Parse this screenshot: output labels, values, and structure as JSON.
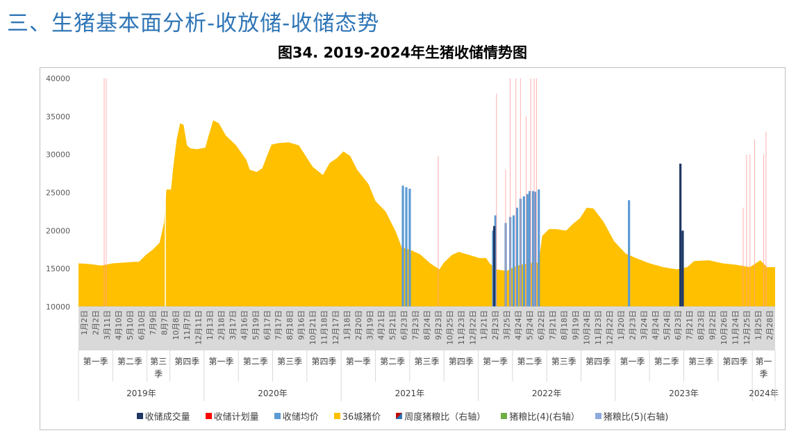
{
  "heading": "三、生猪基本面分析-收放储-收储态势",
  "chart_data": {
    "type": "area+bar",
    "title": "图34. 2019-2024年生猪收储情势图",
    "ylim": [
      10000,
      40000
    ],
    "yticks": [
      "10000",
      "15000",
      "20000",
      "25000",
      "30000",
      "35000",
      "40000"
    ],
    "categories": [
      "1月2日",
      "2月2日",
      "3月11日",
      "4月10日",
      "5月10日",
      "6月10日",
      "7月9日",
      "8月7日",
      "10月8日",
      "11月7日",
      "12月11日",
      "1月13日",
      "2月18日",
      "3月17日",
      "4月16日",
      "5月19日",
      "6月17日",
      "7月17日",
      "8月18日",
      "9月16日",
      "10月21日",
      "11月18日",
      "12月17日",
      "1月18日",
      "2月20日",
      "3月19日",
      "4月21日",
      "5月21日",
      "6月23日",
      "7月23日",
      "8月24日",
      "9月23日",
      "10月25日",
      "11月23日",
      "12月22日",
      "1月21日",
      "2月23日",
      "3月25日",
      "4月24日",
      "5月24日",
      "6月22日",
      "7月21日",
      "8月18日",
      "9月19日",
      "10月24日",
      "11月23日",
      "12月22日",
      "1月20日",
      "2月23日",
      "3月24日",
      "4月24日",
      "5月24日",
      "6月23日",
      "7月21日",
      "8月23日",
      "9月22日",
      "10月26日",
      "11月24日",
      "12月25日",
      "1月25日",
      "2月28日"
    ],
    "quarters": [
      {
        "label": "第一季",
        "ticks": 3
      },
      {
        "label": "第二季",
        "ticks": 3
      },
      {
        "label": "第三季",
        "ticks": 2
      },
      {
        "label": "第四季",
        "ticks": 3
      },
      {
        "label": "第一季",
        "ticks": 3
      },
      {
        "label": "第二季",
        "ticks": 3
      },
      {
        "label": "第三季",
        "ticks": 3
      },
      {
        "label": "第四季",
        "ticks": 3
      },
      {
        "label": "第一季",
        "ticks": 3
      },
      {
        "label": "第二季",
        "ticks": 3
      },
      {
        "label": "第三季",
        "ticks": 3
      },
      {
        "label": "第四季",
        "ticks": 3
      },
      {
        "label": "第一季",
        "ticks": 3
      },
      {
        "label": "第二季",
        "ticks": 3
      },
      {
        "label": "第三季",
        "ticks": 3
      },
      {
        "label": "第四季",
        "ticks": 3
      },
      {
        "label": "第一季",
        "ticks": 3
      },
      {
        "label": "第二季",
        "ticks": 3
      },
      {
        "label": "第三季",
        "ticks": 3
      },
      {
        "label": "第四季",
        "ticks": 3
      },
      {
        "label": "第一季",
        "ticks": 2
      }
    ],
    "years": [
      {
        "label": "2019年",
        "ticks": 11
      },
      {
        "label": "2020年",
        "ticks": 12
      },
      {
        "label": "2021年",
        "ticks": 12
      },
      {
        "label": "2022年",
        "ticks": 12
      },
      {
        "label": "2023年",
        "ticks": 12
      },
      {
        "label": "2024年",
        "ticks": 2
      }
    ],
    "series": [
      {
        "name": "36城猪价",
        "type": "area",
        "color": "#ffc000",
        "points": [
          [
            0,
            15700
          ],
          [
            1,
            15600
          ],
          [
            2,
            15400
          ],
          [
            3,
            15700
          ],
          [
            4,
            15800
          ],
          [
            5,
            15900
          ],
          [
            5.3,
            15900
          ],
          [
            5.9,
            16800
          ],
          [
            6.5,
            17500
          ],
          [
            7.1,
            18400
          ],
          [
            7.5,
            21100
          ],
          [
            7.7,
            25400
          ],
          [
            8.1,
            25400
          ],
          [
            8.3,
            28400
          ],
          [
            8.6,
            32000
          ],
          [
            8.9,
            34100
          ],
          [
            9.2,
            33900
          ],
          [
            9.5,
            31200
          ],
          [
            9.8,
            30800
          ],
          [
            10.4,
            30700
          ],
          [
            11.1,
            30900
          ],
          [
            11.4,
            32500
          ],
          [
            11.8,
            34500
          ],
          [
            12.3,
            34100
          ],
          [
            12.9,
            32500
          ],
          [
            13.8,
            31200
          ],
          [
            14.7,
            29300
          ],
          [
            15.0,
            28000
          ],
          [
            15.6,
            27700
          ],
          [
            16.1,
            28200
          ],
          [
            16.5,
            29800
          ],
          [
            16.9,
            31300
          ],
          [
            17.5,
            31500
          ],
          [
            18.4,
            31600
          ],
          [
            19.3,
            31200
          ],
          [
            19.9,
            29800
          ],
          [
            20.5,
            28400
          ],
          [
            21.4,
            27300
          ],
          [
            22.0,
            28900
          ],
          [
            22.6,
            29500
          ],
          [
            23.2,
            30400
          ],
          [
            23.8,
            29800
          ],
          [
            24.4,
            28000
          ],
          [
            25.4,
            26100
          ],
          [
            26.0,
            23900
          ],
          [
            26.9,
            22500
          ],
          [
            27.8,
            19800
          ],
          [
            28.3,
            17800
          ],
          [
            29.0,
            17500
          ],
          [
            29.9,
            16900
          ],
          [
            30.8,
            15700
          ],
          [
            31.6,
            14900
          ],
          [
            32.0,
            15800
          ],
          [
            32.7,
            16800
          ],
          [
            33.3,
            17200
          ],
          [
            34.2,
            16800
          ],
          [
            35.1,
            16400
          ],
          [
            35.7,
            16400
          ],
          [
            36.0,
            15700
          ],
          [
            36.6,
            14900
          ],
          [
            37.5,
            14700
          ],
          [
            38.4,
            15400
          ],
          [
            39.4,
            15700
          ],
          [
            40.3,
            15800
          ],
          [
            40.6,
            19300
          ],
          [
            41.2,
            20200
          ],
          [
            41.8,
            20200
          ],
          [
            42.7,
            20000
          ],
          [
            43.3,
            20900
          ],
          [
            43.9,
            21600
          ],
          [
            44.5,
            23000
          ],
          [
            45.1,
            22900
          ],
          [
            46.0,
            21100
          ],
          [
            46.9,
            18600
          ],
          [
            47.9,
            17000
          ],
          [
            48.8,
            16400
          ],
          [
            50.0,
            15700
          ],
          [
            51.2,
            15200
          ],
          [
            52.4,
            14900
          ],
          [
            53.3,
            15200
          ],
          [
            53.9,
            16000
          ],
          [
            55.2,
            16100
          ],
          [
            56.4,
            15700
          ],
          [
            57.6,
            15500
          ],
          [
            58.8,
            15200
          ],
          [
            59.7,
            16100
          ],
          [
            60.3,
            15200
          ],
          [
            61,
            15200
          ]
        ]
      },
      {
        "name": "收储均价",
        "type": "bar",
        "color": "#5b9bd5",
        "points": [
          [
            28.4,
            25900
          ],
          [
            28.7,
            25700
          ],
          [
            29.0,
            25500
          ],
          [
            36.3,
            20000
          ],
          [
            36.5,
            22000
          ],
          [
            37.4,
            21000
          ],
          [
            37.8,
            21800
          ],
          [
            38.1,
            22000
          ],
          [
            38.4,
            23000
          ],
          [
            38.7,
            24200
          ],
          [
            39.0,
            24500
          ],
          [
            39.3,
            24800
          ],
          [
            39.5,
            25200
          ],
          [
            39.8,
            25200
          ],
          [
            40.0,
            25100
          ],
          [
            40.3,
            25400
          ],
          [
            48.2,
            24000
          ],
          [
            52.7,
            19800
          ],
          [
            52.9,
            18500
          ]
        ]
      },
      {
        "name": "收储成交量",
        "type": "bar",
        "color": "#1f3864",
        "points": [
          [
            36.4,
            20600
          ],
          [
            52.7,
            28800
          ],
          [
            52.9,
            20000
          ]
        ]
      },
      {
        "name": "收储计划量",
        "type": "line-spike",
        "color": "#ff0000",
        "points": [
          [
            2.25,
            40000
          ],
          [
            2.43,
            40000
          ],
          [
            31.5,
            29800
          ],
          [
            36.6,
            38000
          ],
          [
            37.4,
            28000
          ],
          [
            37.8,
            40000
          ],
          [
            38.3,
            40000
          ],
          [
            38.7,
            40000
          ],
          [
            39.2,
            35000
          ],
          [
            39.6,
            40000
          ],
          [
            39.9,
            40000
          ],
          [
            40.1,
            40000
          ],
          [
            58.2,
            23000
          ],
          [
            58.5,
            30000
          ],
          [
            58.8,
            30000
          ],
          [
            59.2,
            32000
          ],
          [
            60.0,
            30000
          ],
          [
            60.2,
            33000
          ]
        ]
      }
    ],
    "legend": [
      {
        "label": "收储成交量",
        "color": "#1f3864"
      },
      {
        "label": "收储计划量",
        "color": "#ff0000"
      },
      {
        "label": "收储均价",
        "color": "#5b9bd5"
      },
      {
        "label": "36城猪价",
        "color": "#ffc000"
      },
      {
        "label": "周度猪粮比（右轴）",
        "color": "#c00000"
      },
      {
        "label": "猪粮比(4)(右轴）",
        "color": "#70ad47"
      },
      {
        "label": "猪粮比(5)(右轴)",
        "color": "#8faadc"
      }
    ]
  }
}
